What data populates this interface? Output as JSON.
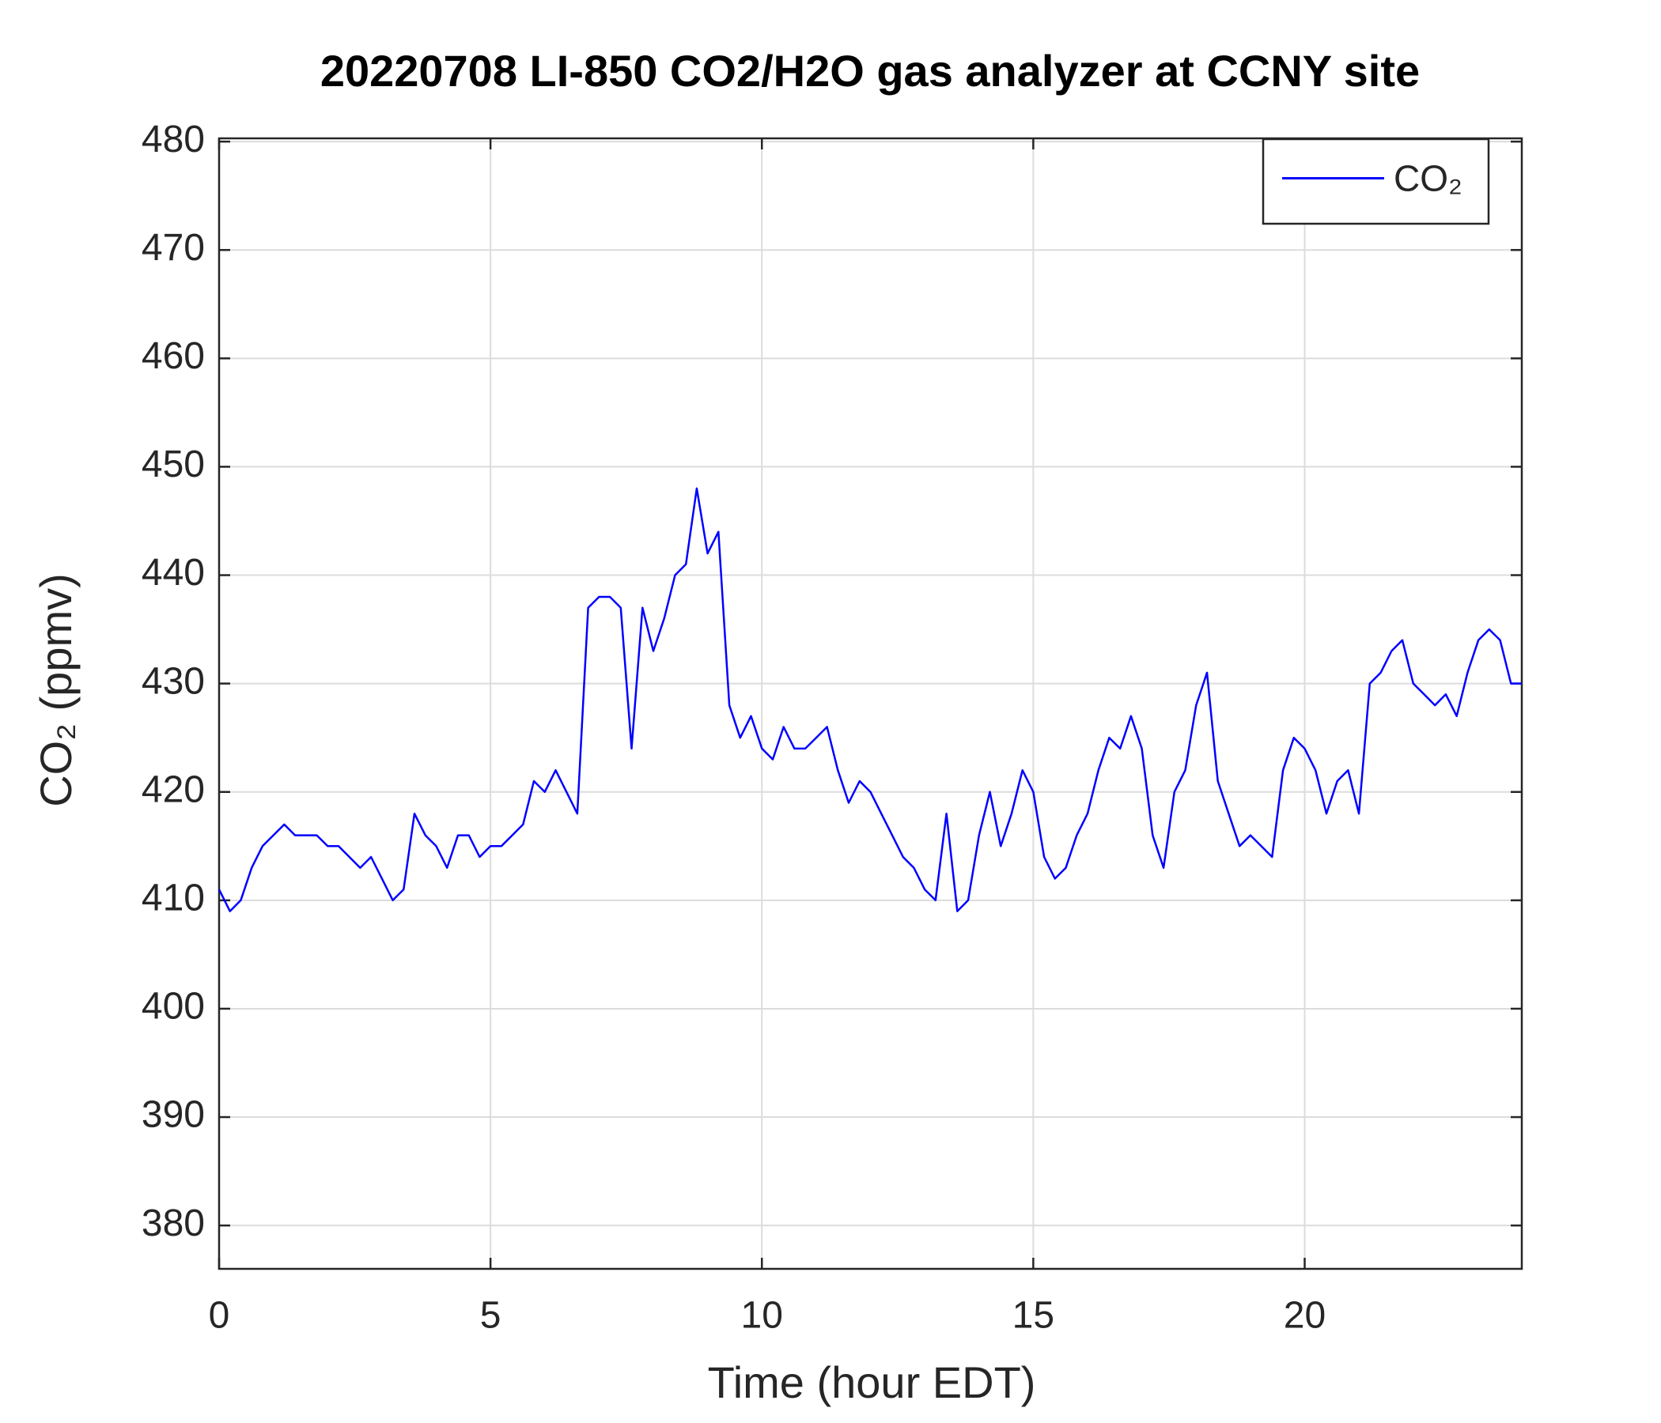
{
  "chart_data": {
    "type": "line",
    "title": "20220708 LI-850 CO2/H2O gas analyzer at CCNY site",
    "x_label": "Time (hour EDT)",
    "y_label": "CO₂ (ppmv)",
    "xlim": [
      0,
      24
    ],
    "ylim": [
      376,
      480.3
    ],
    "xticks": [
      0,
      5,
      10,
      15,
      20
    ],
    "yticks": [
      380,
      390,
      400,
      410,
      420,
      430,
      440,
      450,
      460,
      470,
      480
    ],
    "grid": true,
    "legend_position": "upper right",
    "x": [
      0,
      0.2,
      0.4,
      0.6,
      0.8,
      1,
      1.2,
      1.4,
      1.6,
      1.8,
      2,
      2.2,
      2.4,
      2.6,
      2.8,
      3,
      3.2,
      3.4,
      3.6,
      3.8,
      4,
      4.2,
      4.4,
      4.6,
      4.8,
      5,
      5.2,
      5.4,
      5.6,
      5.8,
      6,
      6.2,
      6.4,
      6.6,
      6.8,
      7,
      7.2,
      7.4,
      7.6,
      7.8,
      8,
      8.2,
      8.4,
      8.6,
      8.8,
      9,
      9.2,
      9.4,
      9.6,
      9.8,
      10,
      10.2,
      10.4,
      10.6,
      10.8,
      11,
      11.2,
      11.4,
      11.6,
      11.8,
      12,
      12.2,
      12.4,
      12.6,
      12.8,
      13,
      13.2,
      13.4,
      13.6,
      13.8,
      14,
      14.2,
      14.4,
      14.6,
      14.8,
      15,
      15.2,
      15.4,
      15.6,
      15.8,
      16,
      16.2,
      16.4,
      16.6,
      16.8,
      17,
      17.2,
      17.4,
      17.6,
      17.8,
      18,
      18.2,
      18.4,
      18.6,
      18.8,
      19,
      19.2,
      19.4,
      19.6,
      19.8,
      20,
      20.2,
      20.4,
      20.6,
      20.8,
      21,
      21.2,
      21.4,
      21.6,
      21.8,
      22,
      22.2,
      22.4,
      22.6,
      22.8,
      23,
      23.2,
      23.4,
      23.6,
      23.8,
      24
    ],
    "series": [
      {
        "name": "CO₂",
        "color": "#0000ff",
        "values": [
          411,
          409,
          410,
          413,
          415,
          416,
          417,
          416,
          416,
          416,
          415,
          415,
          414,
          413,
          414,
          412,
          410,
          411,
          418,
          416,
          415,
          413,
          416,
          416,
          414,
          415,
          415,
          416,
          417,
          421,
          420,
          422,
          420,
          418,
          437,
          438,
          438,
          437,
          424,
          437,
          433,
          436,
          440,
          441,
          448,
          442,
          444,
          428,
          425,
          427,
          424,
          423,
          426,
          424,
          424,
          425,
          426,
          422,
          419,
          421,
          420,
          418,
          416,
          414,
          413,
          411,
          410,
          418,
          409,
          410,
          416,
          420,
          415,
          418,
          422,
          420,
          414,
          412,
          413,
          416,
          418,
          422,
          425,
          424,
          427,
          424,
          416,
          413,
          420,
          422,
          428,
          431,
          421,
          418,
          415,
          416,
          415,
          414,
          422,
          425,
          424,
          422,
          418,
          421,
          422,
          418,
          430,
          431,
          433,
          434,
          430,
          429,
          428,
          429,
          427,
          431,
          434,
          435,
          434,
          430,
          430
        ]
      }
    ]
  }
}
